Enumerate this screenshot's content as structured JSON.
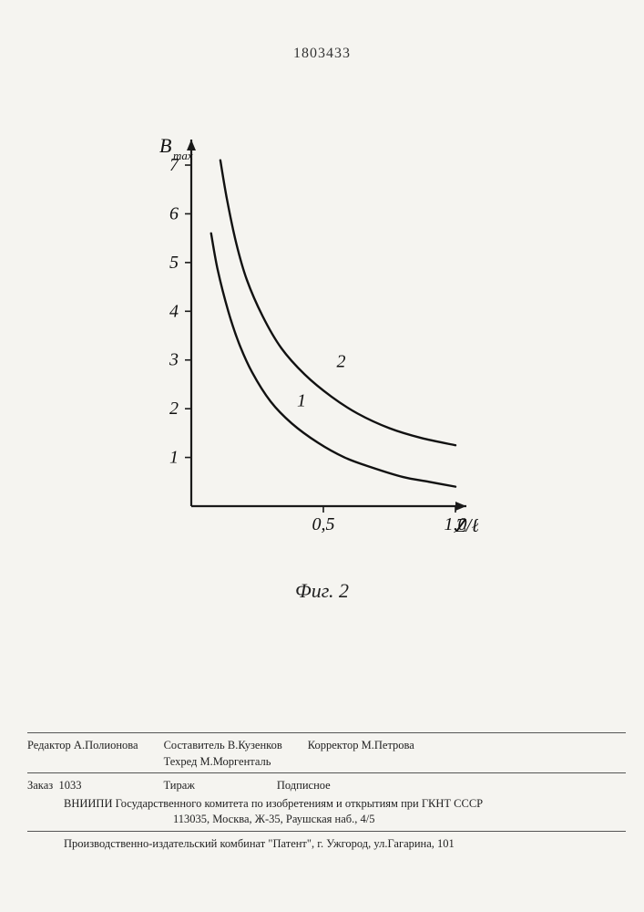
{
  "document_number": "1803433",
  "figure_caption": "Фиг. 2",
  "chart": {
    "type": "line",
    "y_label": "B",
    "y_label_sub": "max",
    "x_label": "Z/ℓ",
    "xlim": [
      0,
      1.0
    ],
    "ylim": [
      0,
      7.3
    ],
    "x_ticks": [
      0.5,
      1.0
    ],
    "x_tick_labels": [
      "0,5",
      "1,0"
    ],
    "y_ticks": [
      1,
      2,
      3,
      4,
      5,
      6,
      7
    ],
    "y_tick_labels": [
      "1",
      "2",
      "3",
      "4",
      "5",
      "6",
      "7"
    ],
    "axis_color": "#1a1a1a",
    "axis_width": 2.2,
    "tick_length": 7,
    "background": "#f5f4f0",
    "label_fontsize_pt": 18,
    "tick_fontsize_pt": 17,
    "curve_labels": [
      "1",
      "2"
    ],
    "curve_label_fontsize_pt": 17,
    "series": [
      {
        "name": "curve 1",
        "label": "1",
        "color": "#111111",
        "width": 2.4,
        "points": [
          [
            0.075,
            5.6
          ],
          [
            0.1,
            4.85
          ],
          [
            0.14,
            4.0
          ],
          [
            0.18,
            3.35
          ],
          [
            0.23,
            2.75
          ],
          [
            0.3,
            2.15
          ],
          [
            0.38,
            1.7
          ],
          [
            0.48,
            1.3
          ],
          [
            0.58,
            1.0
          ],
          [
            0.68,
            0.8
          ],
          [
            0.8,
            0.6
          ],
          [
            0.9,
            0.5
          ],
          [
            1.0,
            0.4
          ]
        ]
      },
      {
        "name": "curve 2",
        "label": "2",
        "color": "#111111",
        "width": 2.4,
        "points": [
          [
            0.11,
            7.1
          ],
          [
            0.135,
            6.3
          ],
          [
            0.17,
            5.4
          ],
          [
            0.21,
            4.65
          ],
          [
            0.27,
            3.9
          ],
          [
            0.34,
            3.25
          ],
          [
            0.43,
            2.7
          ],
          [
            0.53,
            2.25
          ],
          [
            0.63,
            1.9
          ],
          [
            0.75,
            1.6
          ],
          [
            0.87,
            1.4
          ],
          [
            1.0,
            1.25
          ]
        ]
      }
    ],
    "label_positions": {
      "1": [
        0.4,
        2.05
      ],
      "2": [
        0.55,
        2.85
      ]
    }
  },
  "footer": {
    "editor_label": "Редактор",
    "editor_name": "А.Полионова",
    "compiler_label": "Составитель",
    "compiler_name": "В.Кузенков",
    "techred_label": "Техред",
    "techred_name": "М.Моргенталь",
    "corrector_label": "Корректор",
    "corrector_name": "М.Петрова",
    "order_label": "Заказ",
    "order_number": "1033",
    "print_run_label": "Тираж",
    "subscription_label": "Подписное",
    "org_line1": "ВНИИПИ Государственного комитета по изобретениям и открытиям при ГКНТ СССР",
    "org_line2": "113035, Москва, Ж-35, Раушская наб., 4/5",
    "press_line": "Производственно-издательский комбинат \"Патент\", г. Ужгород, ул.Гагарина, 101"
  }
}
